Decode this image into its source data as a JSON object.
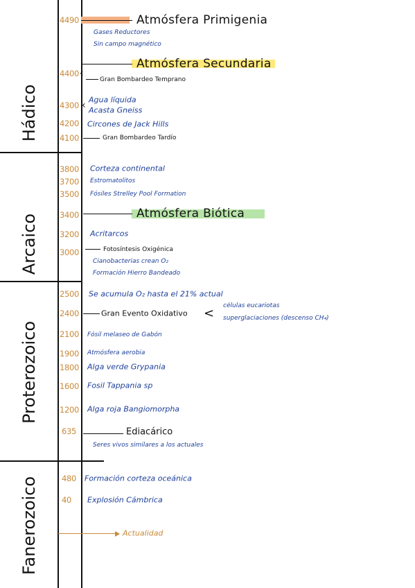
{
  "eons": [
    {
      "id": "hadico",
      "label": "Hádico"
    },
    {
      "id": "arcaico",
      "label": "Arcaico"
    },
    {
      "id": "proterozoico",
      "label": "Proterozoico"
    },
    {
      "id": "fanerozoico",
      "label": "Fanerozoico"
    }
  ],
  "years": [
    "4490",
    "4400",
    "4300",
    "4200",
    "4100",
    "3800",
    "3700",
    "3500",
    "3400",
    "3200",
    "3000",
    "2500",
    "2400",
    "2100",
    "1900",
    "1800",
    "1600",
    "1200",
    "635",
    "480",
    "40"
  ],
  "headings": {
    "primigenia": "Atmósfera Primigenia",
    "secundaria": "Atmósfera Secundaria",
    "biotica": "Atmósfera Biótica",
    "gran_evento": "Gran Evento Oxidativo",
    "ediacarico": "Ediacárico"
  },
  "events": {
    "gases": "Gases Reductores",
    "sin_campo": "Sin campo magnético",
    "gran_bombardeo_temprano": "Gran Bombardeo Temprano",
    "agua": "Agua líquida",
    "acasta": "Acasta Gneiss",
    "circones": "Circones de Jack Hills",
    "gran_bombardeo_tardio": "Gran Bombardeo Tardío",
    "corteza": "Corteza continental",
    "estromatolitos": "Estromatolitos",
    "fosiles_strelley": "Fósiles Strelley Pool Formation",
    "acritarcos": "Acritarcos",
    "fotosintesis": "Fotosíntesis Oxigénica",
    "cianobact": "Cianobacterias crean O₂",
    "formacion_hierro": "Formación Hierro Bandeado",
    "acumula": "Se acumula O₂ hasta el 21% actual",
    "celulas": "células eucariotas",
    "superglaciaciones": "superglaciaciones (descenso CH₄)",
    "fosil_gabon": "Fósil melaseo de Gabón",
    "atmosfera_aerobia": "Atmósfera aerobia",
    "alga_verde": "Alga verde Grypania",
    "fosil_tappania": "Fosil Tappania sp",
    "alga_roja": "Alga roja Bangiomorpha",
    "seres_vivos": "Seres vivos similares a los actuales",
    "corteza_oceanica": "Formación corteza oceánica",
    "explosion": "Explosión Cámbrica",
    "actualidad": "Actualidad"
  },
  "colors": {
    "years": "#c98a3a",
    "events": "#1c3f9a",
    "ink": "#111111",
    "highlight_primigenia": "#f4b183",
    "highlight_secundaria": "#ffe97a",
    "highlight_biotica": "#b7e4a8"
  }
}
